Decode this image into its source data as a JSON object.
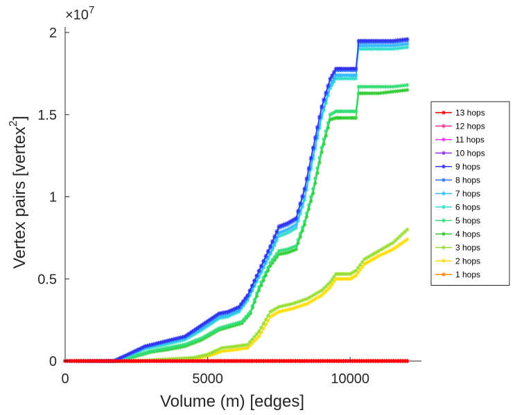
{
  "chart_data": {
    "type": "line",
    "title": "",
    "xlabel": "Volume (m) [edges]",
    "ylabel": "Vertex pairs [vertex",
    "ylabel_superscript": "2",
    "ylabel_close": "]",
    "y_exponent_prefix": "×10",
    "y_exponent": "7",
    "xlim": [
      0,
      12500
    ],
    "ylim": [
      0,
      2
    ],
    "x_ticks": [
      0,
      5000,
      10000
    ],
    "x_tick_labels": [
      "0",
      "5000",
      "10000"
    ],
    "y_ticks": [
      0,
      0.5,
      1,
      1.5,
      2
    ],
    "y_tick_labels": [
      "0",
      "0.5",
      "1",
      "1.5",
      "2"
    ],
    "grid": false,
    "legend_placement": "right",
    "marker": "asterisk",
    "series": [
      {
        "name": "13 hops",
        "color": "#ff0000",
        "x": [
          0,
          12000
        ],
        "y": [
          0,
          0
        ]
      },
      {
        "name": "12 hops",
        "color": "#ff3399",
        "x": [
          0,
          12000
        ],
        "y": [
          0,
          0
        ]
      },
      {
        "name": "11 hops",
        "color": "#ff33ff",
        "x": [
          0,
          12000
        ],
        "y": [
          0,
          0
        ]
      },
      {
        "name": "10 hops",
        "color": "#9933ff",
        "x": [
          0,
          12000
        ],
        "y": [
          0,
          0
        ]
      },
      {
        "name": "9 hops",
        "color": "#3333ee",
        "x": [
          0,
          1700,
          2200,
          2800,
          3500,
          4200,
          4800,
          5400,
          5700,
          6100,
          6400,
          6800,
          7200,
          7500,
          7800,
          8100,
          8400,
          8700,
          9000,
          9300,
          9500,
          9700,
          10000,
          10200,
          10300,
          10600,
          11000,
          11500,
          12000
        ],
        "y": [
          0,
          0,
          0.04,
          0.09,
          0.12,
          0.15,
          0.22,
          0.29,
          0.3,
          0.33,
          0.4,
          0.55,
          0.7,
          0.82,
          0.84,
          0.87,
          1.05,
          1.3,
          1.55,
          1.72,
          1.78,
          1.78,
          1.78,
          1.78,
          1.95,
          1.95,
          1.95,
          1.95,
          1.96
        ]
      },
      {
        "name": "8 hops",
        "color": "#3377ff",
        "x": [
          0,
          1700,
          2200,
          2800,
          3500,
          4200,
          4800,
          5400,
          5700,
          6100,
          6400,
          6800,
          7200,
          7500,
          7800,
          8100,
          8400,
          8700,
          9000,
          9300,
          9500,
          9700,
          10000,
          10200,
          10300,
          10600,
          11000,
          11500,
          12000
        ],
        "y": [
          0,
          0,
          0.04,
          0.088,
          0.118,
          0.148,
          0.215,
          0.285,
          0.295,
          0.325,
          0.395,
          0.545,
          0.69,
          0.81,
          0.83,
          0.86,
          1.04,
          1.29,
          1.54,
          1.71,
          1.77,
          1.77,
          1.77,
          1.77,
          1.94,
          1.94,
          1.94,
          1.94,
          1.95
        ]
      },
      {
        "name": "7 hops",
        "color": "#33bbff",
        "x": [
          0,
          1700,
          2200,
          2800,
          3500,
          4200,
          4800,
          5400,
          5700,
          6100,
          6400,
          6800,
          7200,
          7500,
          7800,
          8100,
          8400,
          8700,
          9000,
          9300,
          9500,
          9700,
          10000,
          10200,
          10300,
          10600,
          11000,
          11500,
          12000
        ],
        "y": [
          0,
          0,
          0.035,
          0.08,
          0.11,
          0.14,
          0.2,
          0.27,
          0.28,
          0.31,
          0.38,
          0.52,
          0.66,
          0.78,
          0.8,
          0.83,
          1.0,
          1.25,
          1.5,
          1.68,
          1.74,
          1.74,
          1.74,
          1.74,
          1.92,
          1.92,
          1.92,
          1.92,
          1.93
        ]
      },
      {
        "name": "6 hops",
        "color": "#33ddcc",
        "x": [
          0,
          1700,
          2200,
          2800,
          3500,
          4200,
          4800,
          5400,
          5700,
          6100,
          6400,
          6800,
          7200,
          7500,
          7800,
          8100,
          8400,
          8700,
          9000,
          9300,
          9500,
          9700,
          10000,
          10200,
          10300,
          10600,
          11000,
          11500,
          12000
        ],
        "y": [
          0,
          0,
          0.03,
          0.075,
          0.1,
          0.13,
          0.19,
          0.26,
          0.27,
          0.3,
          0.37,
          0.51,
          0.65,
          0.76,
          0.78,
          0.81,
          0.98,
          1.23,
          1.48,
          1.66,
          1.72,
          1.72,
          1.72,
          1.72,
          1.9,
          1.9,
          1.9,
          1.9,
          1.91
        ]
      },
      {
        "name": "5 hops",
        "color": "#33dd77",
        "x": [
          0,
          1900,
          2400,
          3000,
          3600,
          4200,
          4800,
          5400,
          5800,
          6200,
          6500,
          6800,
          7200,
          7500,
          7800,
          8100,
          8400,
          8700,
          9000,
          9300,
          9500,
          9700,
          10000,
          10200,
          10300,
          10600,
          11000,
          11500,
          12000
        ],
        "y": [
          0,
          0,
          0.03,
          0.06,
          0.08,
          0.1,
          0.14,
          0.2,
          0.22,
          0.24,
          0.3,
          0.45,
          0.6,
          0.67,
          0.68,
          0.7,
          0.85,
          1.05,
          1.3,
          1.5,
          1.52,
          1.52,
          1.52,
          1.52,
          1.67,
          1.67,
          1.67,
          1.67,
          1.68
        ]
      },
      {
        "name": "4 hops",
        "color": "#33cc33",
        "x": [
          0,
          1900,
          2400,
          3000,
          3600,
          4200,
          4800,
          5400,
          5800,
          6200,
          6500,
          6800,
          7200,
          7500,
          7800,
          8100,
          8400,
          8700,
          9000,
          9300,
          9500,
          9700,
          10000,
          10200,
          10300,
          10600,
          11000,
          11500,
          12000
        ],
        "y": [
          0,
          0,
          0.025,
          0.055,
          0.07,
          0.09,
          0.13,
          0.19,
          0.21,
          0.23,
          0.29,
          0.43,
          0.58,
          0.65,
          0.66,
          0.68,
          0.83,
          1.02,
          1.27,
          1.47,
          1.48,
          1.48,
          1.48,
          1.48,
          1.63,
          1.63,
          1.63,
          1.64,
          1.65
        ]
      },
      {
        "name": "3 hops",
        "color": "#99dd33",
        "x": [
          0,
          2500,
          3500,
          4500,
          5000,
          5500,
          6000,
          6400,
          6800,
          7200,
          7500,
          8000,
          8500,
          9000,
          9300,
          9500,
          9700,
          10000,
          10200,
          10500,
          10800,
          11000,
          11500,
          12000
        ],
        "y": [
          0,
          0,
          0.01,
          0.02,
          0.04,
          0.08,
          0.09,
          0.1,
          0.18,
          0.3,
          0.33,
          0.35,
          0.38,
          0.43,
          0.48,
          0.53,
          0.53,
          0.53,
          0.55,
          0.62,
          0.65,
          0.67,
          0.72,
          0.8
        ]
      },
      {
        "name": "2 hops",
        "color": "#ffdd00",
        "x": [
          0,
          2500,
          3500,
          4500,
          5000,
          5500,
          6000,
          6400,
          6800,
          7200,
          7500,
          8000,
          8500,
          9000,
          9300,
          9500,
          9700,
          10000,
          10200,
          10500,
          10800,
          11000,
          11500,
          12000
        ],
        "y": [
          0,
          0,
          0.008,
          0.015,
          0.03,
          0.06,
          0.07,
          0.08,
          0.15,
          0.27,
          0.3,
          0.32,
          0.35,
          0.4,
          0.45,
          0.5,
          0.5,
          0.5,
          0.52,
          0.59,
          0.62,
          0.64,
          0.68,
          0.74
        ]
      },
      {
        "name": "1 hops",
        "color": "#ff8800",
        "x": [
          0,
          12000
        ],
        "y": [
          0.002,
          0.002
        ]
      }
    ]
  }
}
